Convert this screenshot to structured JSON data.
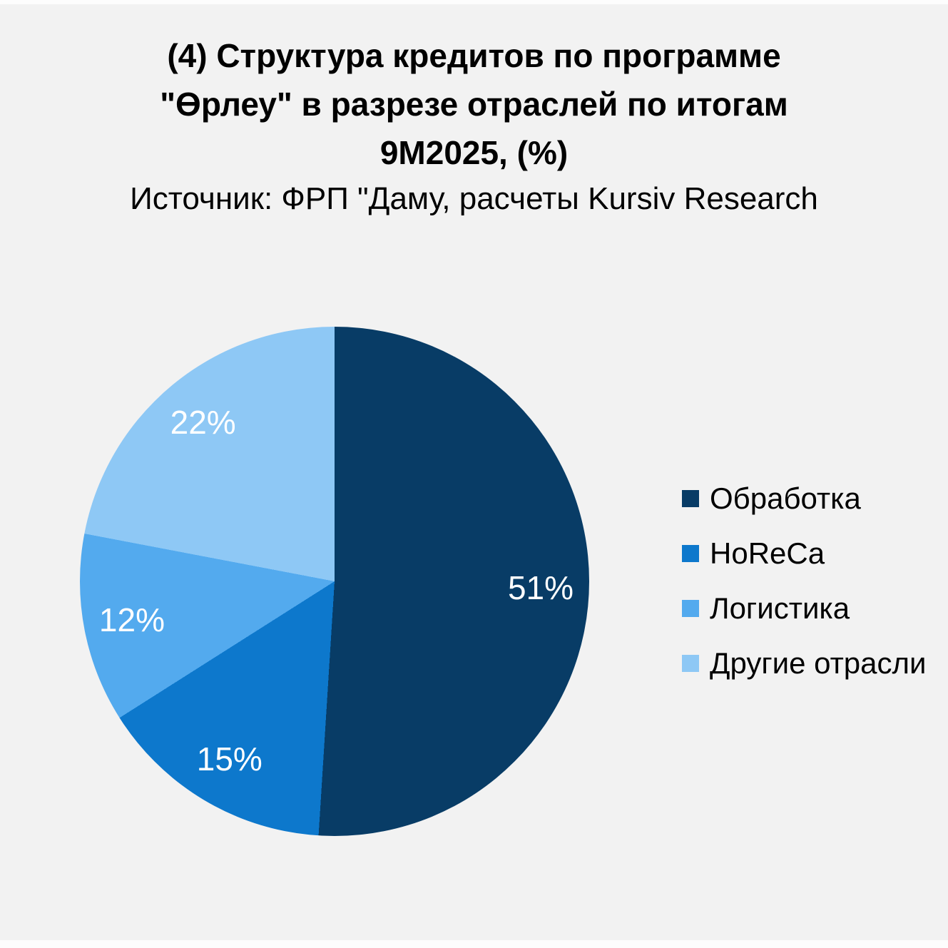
{
  "header": {
    "title_lines": [
      "(4) Структура кредитов по программе",
      "\"Өрлеу\" в разрезе отраслей по итогам",
      "9М2025, (%)"
    ],
    "source": "Источник: ФРП \"Даму, расчеты Kursiv Research"
  },
  "colors": {
    "background": "#f2f2f2",
    "title_text": "#000000",
    "slice_label_text": "#ffffff",
    "legend_text": "#000000"
  },
  "chart_data": {
    "type": "pie",
    "title": "(4) Структура кредитов по программе \"Өрлеу\" в разрезе отраслей по итогам 9М2025, (%)",
    "subtitle": "Источник: ФРП \"Даму, расчеты Kursiv Research",
    "start_angle_deg": 0,
    "direction": "clockwise",
    "legend_position": "right",
    "grid": false,
    "slices": [
      {
        "name": "Обработка",
        "value": 51,
        "label": "51%",
        "color": "#083c66"
      },
      {
        "name": "HoReCa",
        "value": 15,
        "label": "15%",
        "color": "#0d78cc"
      },
      {
        "name": "Логистика",
        "value": 12,
        "label": "12%",
        "color": "#53aaee"
      },
      {
        "name": "Другие отрасли",
        "value": 22,
        "label": "22%",
        "color": "#8ec8f5"
      }
    ]
  }
}
